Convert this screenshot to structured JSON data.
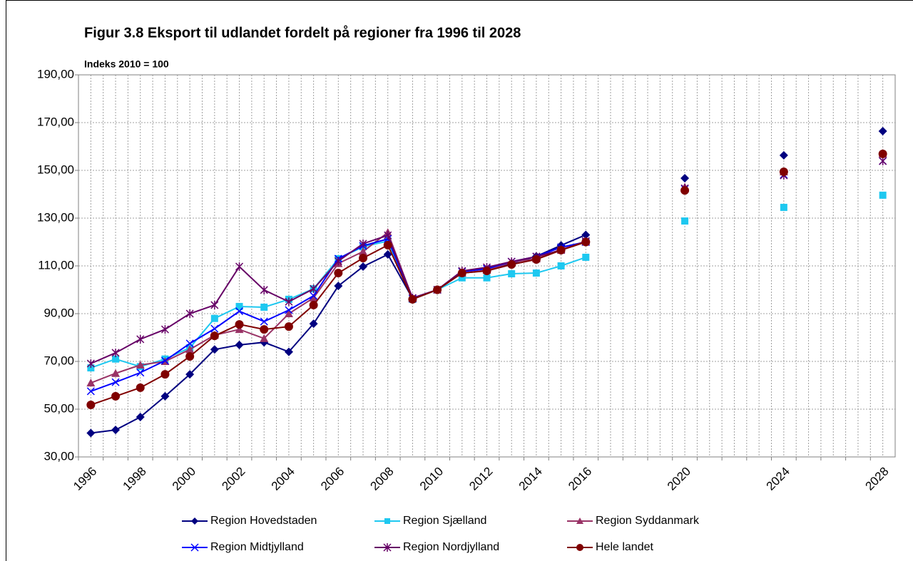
{
  "chart_data": {
    "type": "line",
    "title": "Figur 3.8 Eksport til udlandet fordelt på regioner fra 1996 til 2028",
    "subtitle": "Indeks 2010 = 100",
    "categories": [
      "1996",
      null,
      "1998",
      null,
      "2000",
      null,
      "2002",
      null,
      "2004",
      null,
      "2006",
      null,
      "2008",
      null,
      "2010",
      null,
      "2012",
      null,
      "2014",
      null,
      "2016",
      null,
      null,
      null,
      "2020",
      null,
      null,
      null,
      "2024",
      null,
      null,
      null,
      "2028"
    ],
    "ylim": [
      30,
      190
    ],
    "yticks": [
      {
        "value": 30,
        "label": "30,00"
      },
      {
        "value": 50,
        "label": "50,00"
      },
      {
        "value": 70,
        "label": "70,00"
      },
      {
        "value": 90,
        "label": "90,00"
      },
      {
        "value": 110,
        "label": "110,00"
      },
      {
        "value": 130,
        "label": "130,00"
      },
      {
        "value": 150,
        "label": "150,00"
      },
      {
        "value": 170,
        "label": "170,00"
      },
      {
        "value": 190,
        "label": "190,00"
      }
    ],
    "grid": true,
    "legend": "bottom",
    "series": [
      {
        "name": "Region Hovedstaden",
        "color": "#000080",
        "marker": "diamond",
        "values": [
          40,
          41.3,
          46.7,
          55.4,
          64.6,
          75,
          76.9,
          78,
          74,
          85.8,
          101.6,
          109.7,
          114.8,
          96.3,
          100,
          107,
          108,
          111,
          114,
          118.6,
          123,
          null,
          null,
          null,
          146.7,
          null,
          null,
          null,
          156.3,
          null,
          null,
          null,
          166.4
        ]
      },
      {
        "name": "Region Sjælland",
        "color": "#1ec8f0",
        "marker": "square",
        "values": [
          67.3,
          71,
          67.8,
          71,
          75.7,
          88,
          93,
          92.7,
          96,
          100.4,
          113,
          118,
          120.4,
          96,
          100,
          105,
          105,
          106.7,
          107,
          110,
          113.6,
          null,
          null,
          null,
          128.8,
          null,
          null,
          null,
          134.5,
          null,
          null,
          null,
          139.6
        ]
      },
      {
        "name": "Region Syddanmark",
        "color": "#993366",
        "marker": "triangle",
        "values": [
          61,
          65,
          68.5,
          70,
          75,
          81,
          83.4,
          79.6,
          90,
          96.6,
          111,
          116,
          124,
          96.3,
          100,
          107,
          108.2,
          111.5,
          113,
          116.9,
          120,
          null,
          null,
          null,
          143,
          null,
          null,
          null,
          149.4,
          null,
          null,
          null,
          157
        ]
      },
      {
        "name": "Region Midtjylland",
        "color": "#0000ff",
        "marker": "x",
        "values": [
          57.5,
          61.3,
          65.3,
          70.3,
          77.5,
          83.7,
          91,
          86.7,
          91.5,
          97.5,
          113,
          118.4,
          121.3,
          96.3,
          100,
          107.6,
          108.8,
          111.8,
          113.9,
          117.8,
          120,
          null,
          null,
          null,
          142.2,
          null,
          null,
          null,
          148.2,
          null,
          null,
          null,
          153.9
        ]
      },
      {
        "name": "Region Nordjylland",
        "color": "#660066",
        "marker": "star",
        "values": [
          69.1,
          73.6,
          79.3,
          83.4,
          90,
          93.6,
          109.7,
          99.9,
          95,
          100.4,
          112,
          119.3,
          122.8,
          96.6,
          100,
          107.9,
          109.4,
          111.8,
          113.9,
          116.6,
          120.4,
          null,
          null,
          null,
          142.5,
          null,
          null,
          null,
          147.9,
          null,
          null,
          null,
          153.9
        ]
      },
      {
        "name": "Hele landet",
        "color": "#800000",
        "marker": "circle",
        "values": [
          51.8,
          55.4,
          59,
          64.6,
          72.1,
          80.7,
          85.5,
          83.4,
          84.6,
          93.6,
          107,
          113.3,
          118.7,
          96,
          100,
          107,
          107.9,
          110.6,
          112.7,
          116.6,
          120,
          null,
          null,
          null,
          141.6,
          null,
          null,
          null,
          149.4,
          null,
          null,
          null,
          156.9
        ]
      }
    ]
  }
}
